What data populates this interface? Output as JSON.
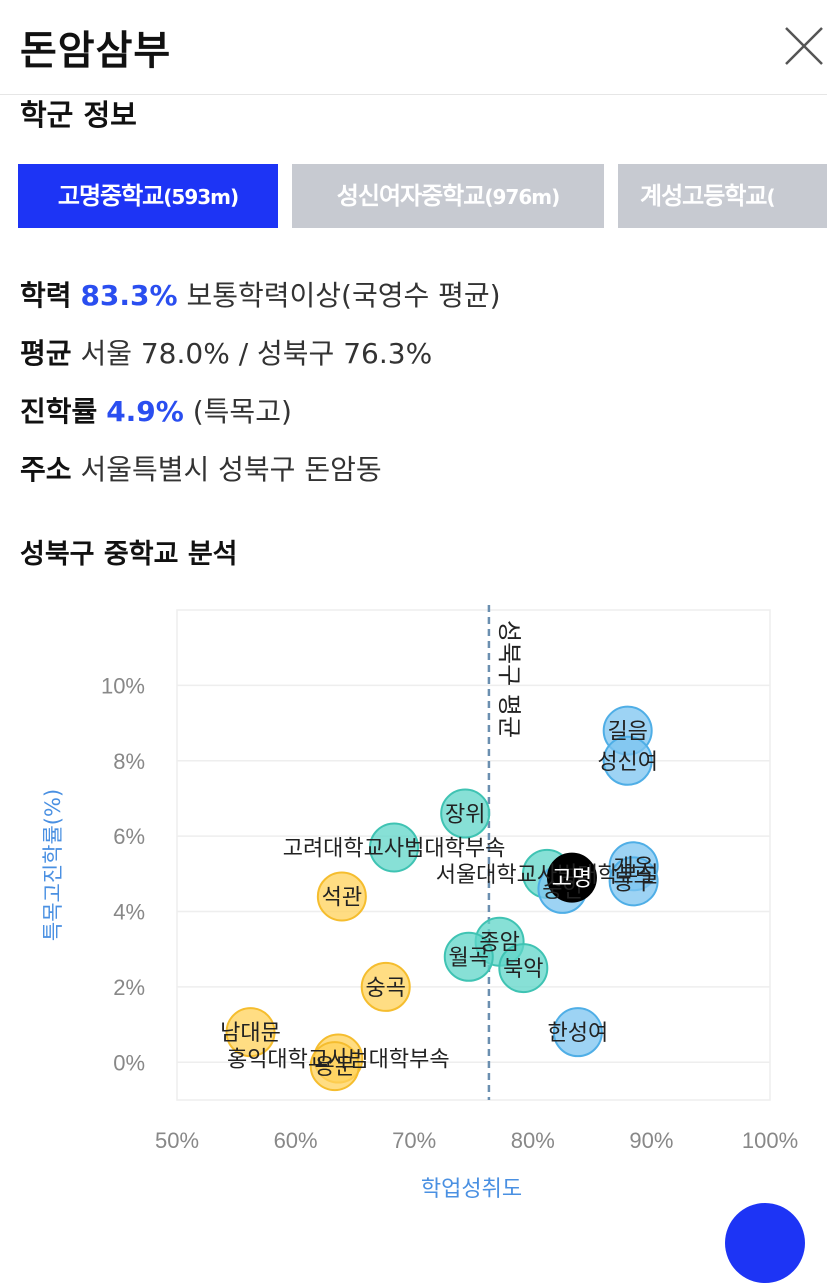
{
  "header": {
    "title": "돈암삼부"
  },
  "school_info": {
    "section_title": "학군 정보",
    "tabs": [
      {
        "label": "고명중학교",
        "distance": "(593m)",
        "active": true
      },
      {
        "label": "성신여자중학교",
        "distance": "(976m)",
        "active": false
      },
      {
        "label": "계성고등학교",
        "distance": "(",
        "active": false
      }
    ],
    "rows": {
      "academic": {
        "label": "학력",
        "value": "83.3%",
        "rest": "보통학력이상(국영수 평균)"
      },
      "average": {
        "label": "평균",
        "text": "서울 78.0% / 성북구 76.3%"
      },
      "advance": {
        "label": "진학률",
        "value": "4.9%",
        "rest": "(특목고)"
      },
      "address": {
        "label": "주소",
        "text": "서울특별시 성북구 돈암동"
      }
    }
  },
  "analysis": {
    "section_title": "성북구 중학교 분석"
  },
  "colors": {
    "accent": "#1d34f5",
    "tab_inactive": "#c7cad1",
    "highlight_text": "#2a4ef0",
    "teal": "#5fd6c8",
    "sky": "#7cc4f0",
    "yellow": "#ffd159",
    "selected": "#000000",
    "axis_label": "#4a90e2"
  },
  "chart_data": {
    "type": "scatter",
    "xlabel": "학업성취도",
    "ylabel": "특목고진학률(%)",
    "xlim": [
      50,
      100
    ],
    "ylim": [
      -1,
      12
    ],
    "xticks": [
      "50%",
      "60%",
      "70%",
      "80%",
      "90%",
      "100%"
    ],
    "yticks": [
      "0%",
      "2%",
      "4%",
      "6%",
      "8%",
      "10%"
    ],
    "reference_line": {
      "x": 76.3,
      "label": "성북구 평균"
    },
    "grid": true,
    "points": [
      {
        "name": "길음",
        "x": 88.0,
        "y": 8.8,
        "color": "sky"
      },
      {
        "name": "성신여",
        "x": 88.0,
        "y": 8.0,
        "color": "sky"
      },
      {
        "name": "장위",
        "x": 74.3,
        "y": 6.6,
        "color": "teal"
      },
      {
        "name": "고려대학교사범대학부속",
        "x": 68.3,
        "y": 5.7,
        "color": "teal"
      },
      {
        "name": "서울대학교사범대학부설",
        "x": 81.2,
        "y": 5.0,
        "color": "teal"
      },
      {
        "name": "숭인",
        "x": 82.5,
        "y": 4.6,
        "color": "sky"
      },
      {
        "name": "고명",
        "x": 83.3,
        "y": 4.9,
        "color": "selected"
      },
      {
        "name": "개운",
        "x": 88.5,
        "y": 5.2,
        "color": "sky"
      },
      {
        "name": "동구",
        "x": 88.5,
        "y": 4.8,
        "color": "sky"
      },
      {
        "name": "석관",
        "x": 63.9,
        "y": 4.4,
        "color": "yellow"
      },
      {
        "name": "종암",
        "x": 77.2,
        "y": 3.2,
        "color": "teal"
      },
      {
        "name": "월곡",
        "x": 74.6,
        "y": 2.8,
        "color": "teal"
      },
      {
        "name": "북악",
        "x": 79.2,
        "y": 2.5,
        "color": "teal"
      },
      {
        "name": "숭곡",
        "x": 67.6,
        "y": 2.0,
        "color": "yellow"
      },
      {
        "name": "한성여",
        "x": 83.8,
        "y": 0.8,
        "color": "sky"
      },
      {
        "name": "남대문",
        "x": 56.2,
        "y": 0.8,
        "color": "yellow"
      },
      {
        "name": "홍익대학교사범대학부속",
        "x": 63.6,
        "y": 0.1,
        "color": "yellow"
      },
      {
        "name": "용문",
        "x": 63.3,
        "y": -0.1,
        "color": "yellow"
      }
    ]
  }
}
